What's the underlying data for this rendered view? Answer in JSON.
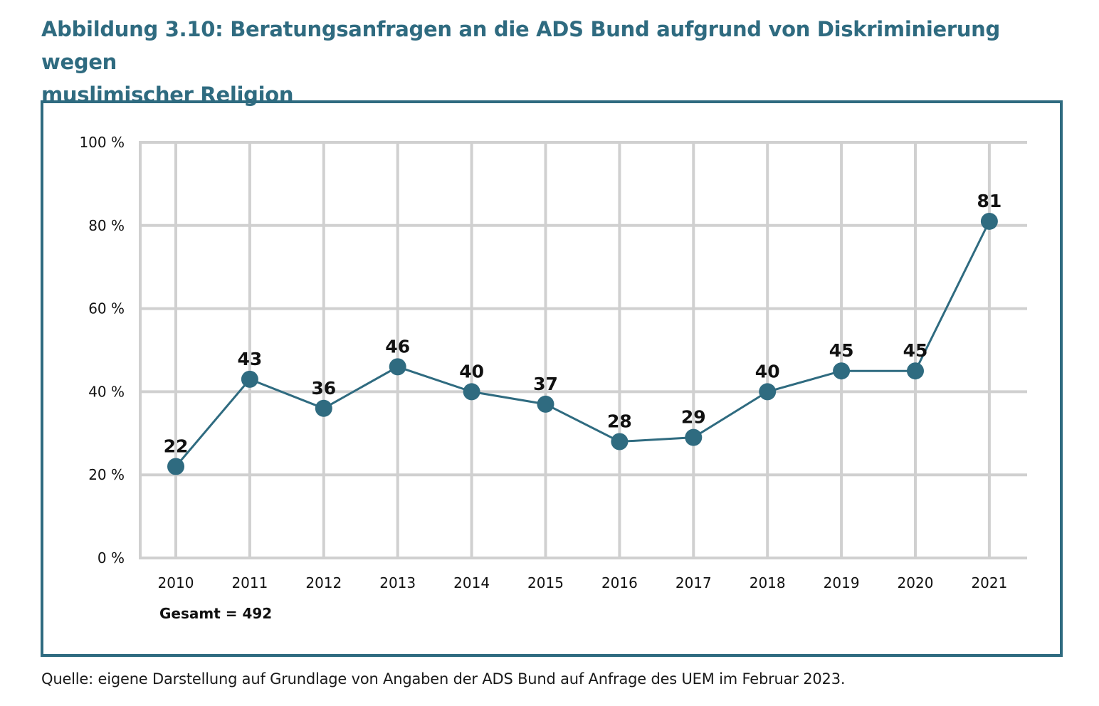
{
  "figure": {
    "title_line1": "Abbildung 3.10: Beratungsanfragen an die ADS Bund aufgrund von Diskriminierung wegen",
    "title_line2": "muslimischer Religion",
    "source": "Quelle: eigene Darstellung auf Grundlage von Angaben der ADS Bund auf Anfrage des UEM im Februar 2023.",
    "total_label": "Gesamt = 492"
  },
  "colors": {
    "accent": "#2f6b80",
    "grid": "#d0d0d0",
    "text": "#111111"
  },
  "chart_data": {
    "type": "line",
    "title": "Abbildung 3.10: Beratungsanfragen an die ADS Bund aufgrund von Diskriminierung wegen muslimischer Religion",
    "xlabel": "",
    "ylabel": "",
    "categories": [
      "2010",
      "2011",
      "2012",
      "2013",
      "2014",
      "2015",
      "2016",
      "2017",
      "2018",
      "2019",
      "2020",
      "2021"
    ],
    "values": [
      22,
      43,
      36,
      46,
      40,
      37,
      28,
      29,
      40,
      45,
      45,
      81
    ],
    "data_labels": [
      "22",
      "43",
      "36",
      "46",
      "40",
      "37",
      "28",
      "29",
      "40",
      "45",
      "45",
      "81"
    ],
    "ylim": [
      0,
      100
    ],
    "yticks": [
      0,
      20,
      40,
      60,
      80,
      100
    ],
    "ytick_labels": [
      "0 %",
      "20 %",
      "40 %",
      "60 %",
      "80 %",
      "100 %"
    ],
    "grid": true,
    "legend": "none",
    "annotation": "Gesamt = 492"
  }
}
